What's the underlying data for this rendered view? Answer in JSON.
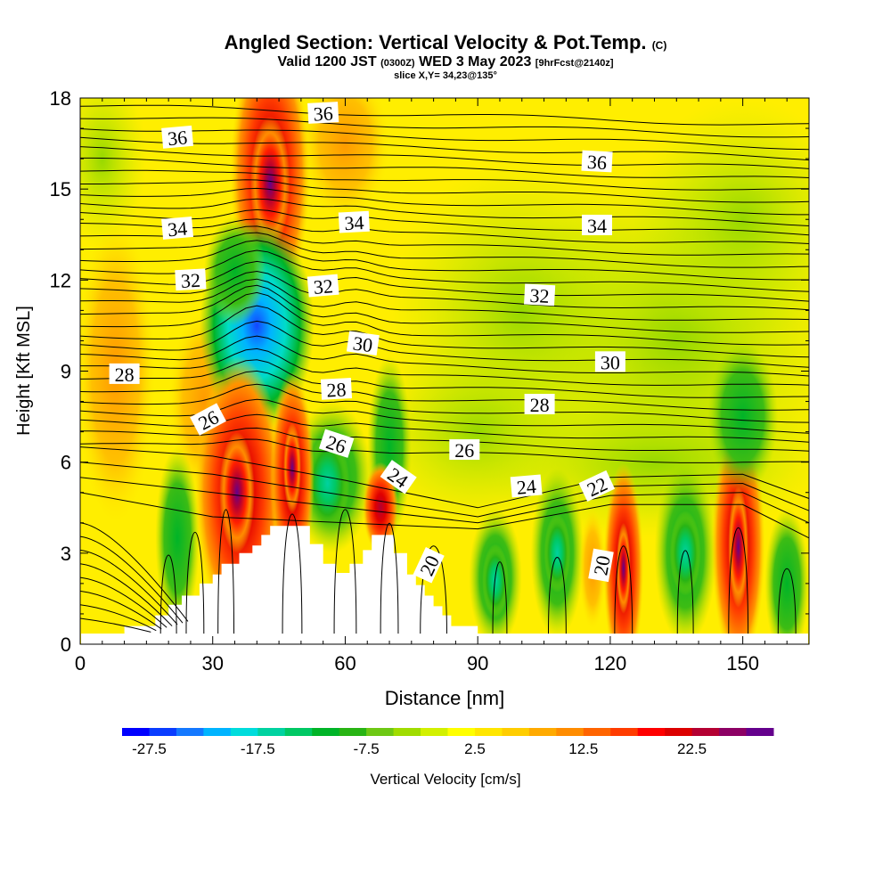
{
  "chart_data": {
    "type": "heatmap",
    "title": "Angled Section: Vertical Velocity & Pot.Temp.",
    "title_unit": "(C)",
    "subtitle": {
      "valid": "Valid 1200 JST",
      "utc": "(0300Z)",
      "date": "WED 3 May 2023",
      "forecast": "[9hrFcst@2140z]"
    },
    "slice": "slice X,Y= 34,23@135°",
    "xlabel": "Distance [nm]",
    "ylabel": "Height [Kft MSL]",
    "xlim": [
      0,
      165
    ],
    "ylim": [
      0,
      18
    ],
    "x_ticks": [
      "0",
      "30",
      "60",
      "90",
      "120",
      "150"
    ],
    "y_ticks": [
      "0",
      "3",
      "6",
      "9",
      "12",
      "15",
      "18"
    ],
    "colorbar": {
      "label": "Vertical Velocity [cm/s]",
      "range": [
        -30,
        30
      ],
      "step": 2.5,
      "tick_labels": [
        "-27.5",
        "-17.5",
        "-7.5",
        "2.5",
        "12.5",
        "22.5"
      ],
      "colors": [
        "#0000ff",
        "#0a3cff",
        "#1478ff",
        "#00b4ff",
        "#00dcdc",
        "#00d2a0",
        "#00c864",
        "#00b428",
        "#28b414",
        "#6ec814",
        "#a0dc00",
        "#d2f000",
        "#ffff00",
        "#ffe600",
        "#ffcd00",
        "#ffaa00",
        "#ff8c00",
        "#ff6400",
        "#ff3c00",
        "#ff0000",
        "#dc0000",
        "#b40032",
        "#8c0064",
        "#64008c"
      ]
    },
    "contour_labels": [
      {
        "text": "36",
        "x": 22,
        "y": 16.7,
        "rot": -5
      },
      {
        "text": "36",
        "x": 55,
        "y": 17.5,
        "rot": -3
      },
      {
        "text": "36",
        "x": 117,
        "y": 15.9,
        "rot": 3
      },
      {
        "text": "34",
        "x": 22,
        "y": 13.7,
        "rot": -5
      },
      {
        "text": "34",
        "x": 62,
        "y": 13.9,
        "rot": -3
      },
      {
        "text": "34",
        "x": 117,
        "y": 13.8,
        "rot": 0
      },
      {
        "text": "32",
        "x": 25,
        "y": 12.0,
        "rot": -3
      },
      {
        "text": "32",
        "x": 55,
        "y": 11.8,
        "rot": -5
      },
      {
        "text": "32",
        "x": 104,
        "y": 11.5,
        "rot": 3
      },
      {
        "text": "30",
        "x": 64,
        "y": 9.9,
        "rot": 8
      },
      {
        "text": "30",
        "x": 120,
        "y": 9.3,
        "rot": 0
      },
      {
        "text": "28",
        "x": 10,
        "y": 8.9,
        "rot": 0
      },
      {
        "text": "28",
        "x": 58,
        "y": 8.4,
        "rot": -3
      },
      {
        "text": "28",
        "x": 104,
        "y": 7.9,
        "rot": 0
      },
      {
        "text": "26",
        "x": 29,
        "y": 7.4,
        "rot": -28
      },
      {
        "text": "26",
        "x": 58,
        "y": 6.6,
        "rot": 18
      },
      {
        "text": "26",
        "x": 87,
        "y": 6.4,
        "rot": 0
      },
      {
        "text": "24",
        "x": 72,
        "y": 5.5,
        "rot": 35
      },
      {
        "text": "24",
        "x": 101,
        "y": 5.2,
        "rot": -5
      },
      {
        "text": "22",
        "x": 117,
        "y": 5.2,
        "rot": -25
      },
      {
        "text": "20",
        "x": 79,
        "y": 2.6,
        "rot": -65
      },
      {
        "text": "20",
        "x": 118,
        "y": 2.6,
        "rot": -80
      }
    ]
  }
}
